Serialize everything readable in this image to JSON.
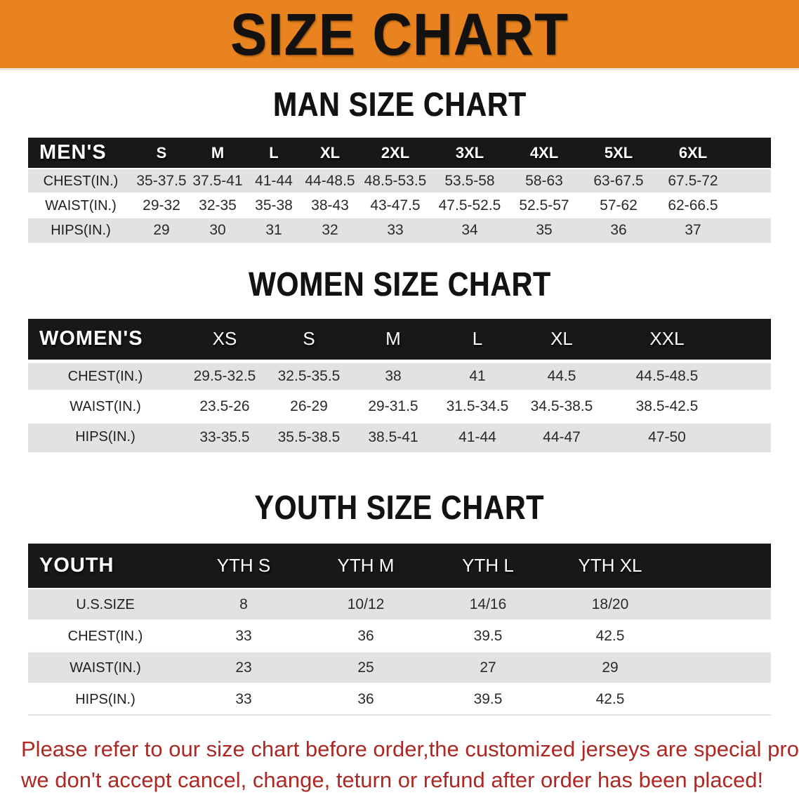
{
  "banner": {
    "title": "SIZE CHART",
    "bg_color": "#E8831F",
    "text_color": "#141210"
  },
  "sections": [
    {
      "key": "men",
      "heading": "MAN SIZE CHART",
      "table": {
        "header_label": "MEN'S",
        "columns": [
          "S",
          "M",
          "L",
          "XL",
          "2XL",
          "3XL",
          "4XL",
          "5XL",
          "6XL"
        ],
        "rows": [
          {
            "label": "CHEST(IN.)",
            "values": [
              "35-37.5",
              "37.5-41",
              "41-44",
              "44-48.5",
              "48.5-53.5",
              "53.5-58",
              "58-63",
              "63-67.5",
              "67.5-72"
            ]
          },
          {
            "label": "WAIST(IN.)",
            "values": [
              "29-32",
              "32-35",
              "35-38",
              "38-43",
              "43-47.5",
              "47.5-52.5",
              "52.5-57",
              "57-62",
              "62-66.5"
            ]
          },
          {
            "label": "HIPS(IN.)",
            "values": [
              "29",
              "30",
              "31",
              "32",
              "33",
              "34",
              "35",
              "36",
              "37"
            ]
          }
        ]
      }
    },
    {
      "key": "women",
      "heading": "WOMEN SIZE CHART",
      "table": {
        "header_label": "WOMEN'S",
        "columns": [
          "XS",
          "S",
          "M",
          "L",
          "XL",
          "XXL"
        ],
        "rows": [
          {
            "label": "CHEST(IN.)",
            "values": [
              "29.5-32.5",
              "32.5-35.5",
              "38",
              "41",
              "44.5",
              "44.5-48.5"
            ]
          },
          {
            "label": "WAIST(IN.)",
            "values": [
              "23.5-26",
              "26-29",
              "29-31.5",
              "31.5-34.5",
              "34.5-38.5",
              "38.5-42.5"
            ]
          },
          {
            "label": "HIPS(IN.)",
            "values": [
              "33-35.5",
              "35.5-38.5",
              "38.5-41",
              "41-44",
              "44-47",
              "47-50"
            ]
          }
        ]
      }
    },
    {
      "key": "youth",
      "heading": "YOUTH SIZE CHART",
      "table": {
        "header_label": "YOUTH",
        "columns": [
          "YTH S",
          "YTH M",
          "YTH L",
          "YTH XL"
        ],
        "rows": [
          {
            "label": "U.S.SIZE",
            "values": [
              "8",
              "10/12",
              "14/16",
              "18/20"
            ]
          },
          {
            "label": "CHEST(IN.)",
            "values": [
              "33",
              "36",
              "39.5",
              "42.5"
            ]
          },
          {
            "label": "WAIST(IN.)",
            "values": [
              "23",
              "25",
              "27",
              "29"
            ]
          },
          {
            "label": "HIPS(IN.)",
            "values": [
              "33",
              "36",
              "39.5",
              "42.5"
            ]
          }
        ]
      }
    }
  ],
  "disclaimer": {
    "lines": [
      "Please refer to our size chart before order,the customized jerseys are special products,",
      "we don't accept cancel, change, teturn or refund after order has been placed!"
    ],
    "color": "#AE2823"
  }
}
